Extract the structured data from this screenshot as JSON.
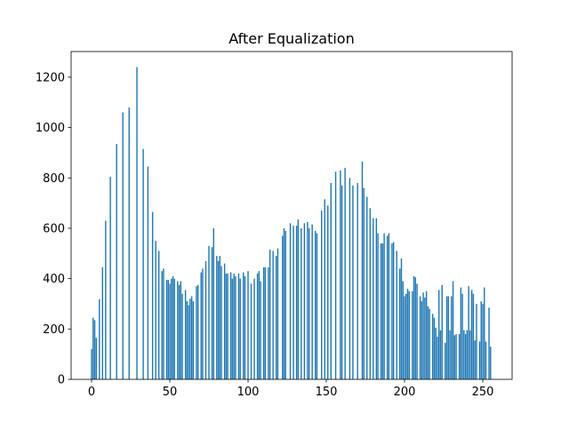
{
  "chart_data": {
    "type": "bar",
    "title": "After Equalization",
    "x": [
      0,
      1,
      2,
      3,
      5,
      7,
      9,
      12,
      16,
      20,
      24,
      29,
      33,
      36,
      39,
      41,
      43,
      45,
      46,
      48,
      49,
      50,
      51,
      52,
      53,
      55,
      56,
      57,
      58,
      60,
      61,
      62,
      63,
      64,
      65,
      67,
      68,
      70,
      71,
      73,
      75,
      77,
      78,
      80,
      81,
      82,
      83,
      85,
      86,
      87,
      89,
      90,
      91,
      92,
      94,
      95,
      97,
      98,
      100,
      102,
      104,
      106,
      107,
      108,
      110,
      111,
      113,
      114,
      116,
      118,
      119,
      122,
      123,
      124,
      127,
      129,
      131,
      132,
      134,
      136,
      138,
      139,
      141,
      143,
      144,
      147,
      149,
      151,
      153,
      156,
      159,
      160,
      162,
      165,
      167,
      170,
      173,
      174,
      176,
      178,
      180,
      182,
      183,
      185,
      186,
      187,
      189,
      190,
      192,
      193,
      195,
      197,
      198,
      199,
      200,
      201,
      202,
      203,
      205,
      206,
      207,
      208,
      210,
      211,
      212,
      213,
      214,
      215,
      216,
      218,
      219,
      220,
      221,
      222,
      223,
      224,
      226,
      227,
      228,
      229,
      230,
      231,
      232,
      233,
      235,
      236,
      237,
      238,
      239,
      240,
      241,
      242,
      243,
      244,
      245,
      246,
      248,
      249,
      250,
      251,
      252,
      254,
      255
    ],
    "values": [
      120,
      245,
      235,
      165,
      318,
      445,
      630,
      805,
      935,
      1060,
      1080,
      1240,
      915,
      845,
      665,
      550,
      510,
      430,
      440,
      395,
      395,
      380,
      400,
      410,
      400,
      390,
      375,
      390,
      340,
      355,
      310,
      295,
      320,
      330,
      310,
      370,
      375,
      425,
      440,
      470,
      530,
      525,
      600,
      490,
      470,
      490,
      450,
      460,
      420,
      420,
      425,
      400,
      420,
      410,
      420,
      400,
      425,
      410,
      430,
      380,
      400,
      420,
      430,
      390,
      445,
      445,
      445,
      515,
      510,
      490,
      520,
      570,
      600,
      590,
      620,
      610,
      610,
      635,
      600,
      620,
      625,
      600,
      615,
      590,
      580,
      670,
      715,
      690,
      780,
      825,
      830,
      770,
      840,
      800,
      770,
      780,
      865,
      760,
      725,
      680,
      640,
      640,
      580,
      540,
      540,
      580,
      570,
      580,
      540,
      545,
      510,
      440,
      480,
      390,
      330,
      340,
      360,
      350,
      350,
      410,
      405,
      380,
      330,
      310,
      345,
      325,
      350,
      290,
      280,
      260,
      245,
      205,
      170,
      355,
      195,
      375,
      145,
      330,
      330,
      195,
      330,
      390,
      175,
      180,
      180,
      365,
      340,
      195,
      180,
      195,
      370,
      195,
      355,
      340,
      155,
      300,
      150,
      310,
      300,
      365,
      150,
      285,
      130
    ],
    "color": "#1f77b4",
    "xlim": [
      -13.07,
      268.75
    ],
    "ylim": [
      0,
      1302
    ],
    "xticks": [
      0,
      50,
      100,
      150,
      200,
      250
    ],
    "yticks": [
      0,
      200,
      400,
      600,
      800,
      1000,
      1200
    ]
  }
}
